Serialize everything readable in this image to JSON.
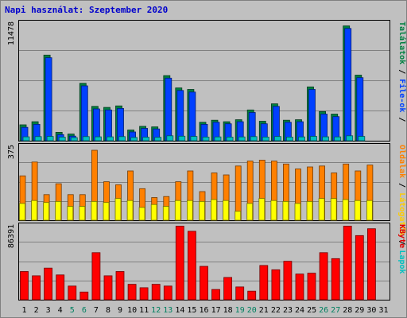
{
  "chart_data": {
    "type": "bar",
    "title": "Napi használat: Szeptember 2020",
    "categories": [
      "1",
      "2",
      "3",
      "4",
      "5",
      "6",
      "7",
      "8",
      "9",
      "10",
      "11",
      "12",
      "13",
      "14",
      "15",
      "16",
      "17",
      "18",
      "19",
      "20",
      "21",
      "22",
      "23",
      "24",
      "25",
      "26",
      "27",
      "28",
      "29",
      "30",
      "31"
    ],
    "weekend_days": [
      "5",
      "6",
      "12",
      "13",
      "19",
      "20",
      "26",
      "27"
    ],
    "panels": [
      {
        "name": "hits-files",
        "ymax_label": "11478",
        "ylim": [
          0,
          11478
        ],
        "right_labels": [
          {
            "text": "Találatok",
            "color": "#008040"
          },
          {
            "text": " / ",
            "color": "#000000"
          },
          {
            "text": "File-ok",
            "color": "#0040ff"
          },
          {
            "text": " / ",
            "color": "#000000"
          }
        ],
        "series": [
          {
            "name": "Találatok",
            "color": "#008040",
            "values": [
              1550,
              1850,
              8350,
              820,
              650,
              5600,
              3350,
              3250,
              3400,
              1050,
              1400,
              1350,
              6350,
              5150,
              5000,
              1800,
              2000,
              1850,
              2050,
              3000,
              1900,
              3600,
              2000,
              2050,
              5250,
              2850,
              2600,
              11200,
              6400,
              null,
              null
            ]
          },
          {
            "name": "File-ok",
            "color": "#0040ff",
            "values": [
              1300,
              1600,
              8100,
              600,
              450,
              5350,
              3100,
              3000,
              3150,
              850,
              1200,
              1150,
              6100,
              4900,
              4750,
              1600,
              1800,
              1650,
              1850,
              2750,
              1650,
              3350,
              1800,
              1850,
              5000,
              2600,
              2350,
              10950,
              6150,
              null,
              null
            ]
          },
          {
            "name": "Lapok",
            "color": "#00c0c0",
            "values": [
              380,
              400,
              420,
              350,
              300,
              400,
              380,
              380,
              400,
              320,
              340,
              330,
              480,
              440,
              420,
              360,
              370,
              360,
              370,
              400,
              360,
              410,
              360,
              370,
              430,
              380,
              370,
              480,
              420,
              null,
              null
            ]
          }
        ]
      },
      {
        "name": "visits",
        "ymax_label": "375",
        "ylim": [
          0,
          375
        ],
        "right_labels": [
          {
            "text": "Oldalak",
            "color": "#ff8000"
          },
          {
            "text": " / ",
            "color": "#000000"
          },
          {
            "text": "Látogatók",
            "color": "#ffcc00"
          },
          {
            "text": " / ",
            "color": "#000000"
          },
          {
            "text": "Lapok",
            "color": "#00c0c0"
          }
        ],
        "series": [
          {
            "name": "Oldalak",
            "color": "#ff8000",
            "values": [
              225,
              295,
              130,
              185,
              130,
              130,
              355,
              195,
              180,
              250,
              160,
              115,
              120,
              195,
              250,
              145,
              240,
              230,
              275,
              300,
              305,
              300,
              285,
              260,
              270,
              275,
              240,
              285,
              250,
              280,
              null
            ]
          },
          {
            "name": "Látogatók",
            "color": "#ffff00",
            "values": [
              85,
              100,
              90,
              95,
              70,
              70,
              95,
              90,
              110,
              100,
              65,
              80,
              70,
              100,
              100,
              95,
              105,
              100,
              45,
              85,
              110,
              100,
              95,
              85,
              95,
              110,
              110,
              105,
              100,
              100,
              null
            ]
          }
        ]
      },
      {
        "name": "kbytes",
        "ymax_label": "86391",
        "ylim": [
          0,
          86391
        ],
        "right_labels": [
          {
            "text": "KByte",
            "color": "#e00000"
          }
        ],
        "series": [
          {
            "name": "KByte",
            "color": "#ff0000",
            "values": [
              33000,
              28000,
              37000,
              29000,
              16000,
              9000,
              55000,
              28000,
              33000,
              18000,
              14000,
              18000,
              16000,
              86000,
              80000,
              39000,
              12000,
              26000,
              15000,
              10000,
              40000,
              35000,
              45000,
              30000,
              31000,
              55000,
              48000,
              86000,
              75000,
              83000,
              null
            ]
          }
        ]
      }
    ]
  }
}
